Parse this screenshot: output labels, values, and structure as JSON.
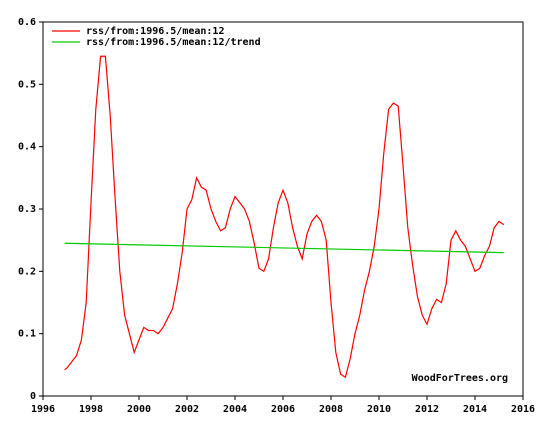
{
  "chart_data": {
    "type": "line",
    "series": [
      {
        "name": "rss/from:1996.5/mean:12",
        "color": "#ff0000",
        "x": [
          1996.9,
          1997.0,
          1997.2,
          1997.4,
          1997.6,
          1997.8,
          1998.0,
          1998.2,
          1998.4,
          1998.6,
          1998.8,
          1999.0,
          1999.2,
          1999.4,
          1999.6,
          1999.8,
          2000.0,
          2000.2,
          2000.4,
          2000.6,
          2000.8,
          2001.0,
          2001.2,
          2001.4,
          2001.6,
          2001.8,
          2002.0,
          2002.2,
          2002.4,
          2002.6,
          2002.8,
          2003.0,
          2003.2,
          2003.4,
          2003.6,
          2003.8,
          2004.0,
          2004.2,
          2004.4,
          2004.6,
          2004.8,
          2005.0,
          2005.2,
          2005.4,
          2005.6,
          2005.8,
          2006.0,
          2006.2,
          2006.4,
          2006.6,
          2006.8,
          2007.0,
          2007.2,
          2007.4,
          2007.6,
          2007.8,
          2008.0,
          2008.2,
          2008.4,
          2008.6,
          2008.8,
          2009.0,
          2009.2,
          2009.4,
          2009.6,
          2009.8,
          2010.0,
          2010.2,
          2010.4,
          2010.6,
          2010.8,
          2011.0,
          2011.2,
          2011.4,
          2011.6,
          2011.8,
          2012.0,
          2012.2,
          2012.4,
          2012.6,
          2012.8,
          2013.0,
          2013.2,
          2013.4,
          2013.6,
          2013.8,
          2014.0,
          2014.2,
          2014.4,
          2014.6,
          2014.8,
          2015.0,
          2015.2
        ],
        "values": [
          0.042,
          0.045,
          0.055,
          0.065,
          0.09,
          0.15,
          0.31,
          0.46,
          0.545,
          0.545,
          0.45,
          0.32,
          0.2,
          0.13,
          0.1,
          0.07,
          0.09,
          0.11,
          0.105,
          0.105,
          0.1,
          0.11,
          0.125,
          0.14,
          0.18,
          0.23,
          0.3,
          0.315,
          0.35,
          0.335,
          0.33,
          0.3,
          0.28,
          0.265,
          0.27,
          0.3,
          0.32,
          0.31,
          0.3,
          0.28,
          0.245,
          0.205,
          0.2,
          0.22,
          0.27,
          0.31,
          0.33,
          0.31,
          0.27,
          0.24,
          0.22,
          0.26,
          0.28,
          0.29,
          0.28,
          0.25,
          0.15,
          0.07,
          0.035,
          0.03,
          0.06,
          0.1,
          0.13,
          0.17,
          0.2,
          0.24,
          0.3,
          0.39,
          0.46,
          0.47,
          0.465,
          0.37,
          0.27,
          0.21,
          0.16,
          0.13,
          0.115,
          0.14,
          0.155,
          0.15,
          0.18,
          0.25,
          0.265,
          0.25,
          0.24,
          0.22,
          0.2,
          0.205,
          0.225,
          0.24,
          0.27,
          0.28,
          0.275
        ]
      },
      {
        "name": "rss/from:1996.5/mean:12/trend",
        "color": "#00cc00",
        "x": [
          1996.9,
          2015.2
        ],
        "values": [
          0.245,
          0.23
        ]
      }
    ],
    "xlim": [
      1996,
      2016
    ],
    "xticks": [
      1996,
      1998,
      2000,
      2002,
      2004,
      2006,
      2008,
      2010,
      2012,
      2014,
      2016
    ],
    "ylim": [
      0,
      0.6
    ],
    "yticks": [
      0,
      0.1,
      0.2,
      0.3,
      0.4,
      0.5,
      0.6
    ],
    "legend": "top-left",
    "annotation": "WoodForTrees.org"
  }
}
